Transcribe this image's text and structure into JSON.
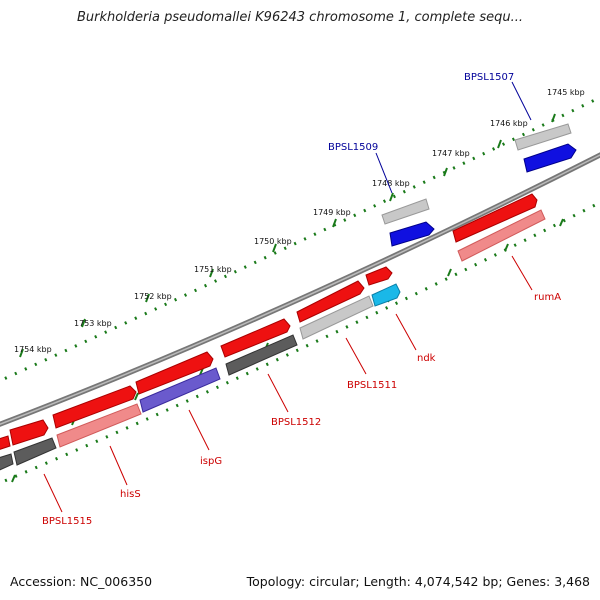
{
  "title": "Burkholderia pseudomallei K96243 chromosome 1, complete sequ...",
  "footer": {
    "accession": "Accession: NC_006350",
    "summary": "Topology: circular; Length: 4,074,542 bp; Genes: 3,468"
  },
  "colors": {
    "forward": "#ee1111",
    "forward_light": "#f08a8a",
    "gray_dark": "#5c5c5c",
    "gray_light": "#c8c8c8",
    "blue": "#1010e0",
    "purple": "#6a5acd",
    "cyan": "#1ab8e8",
    "ruler": "#1a7a1a",
    "label_red": "#cc0000",
    "label_blue": "#000099"
  },
  "kbp_labels": [
    "1745 kbp",
    "1746 kbp",
    "1747 kbp",
    "1748 kbp",
    "1749 kbp",
    "1750 kbp",
    "1751 kbp",
    "1752 kbp",
    "1753 kbp",
    "1754 kbp"
  ],
  "gene_labels": [
    "BPSL1507",
    "BPSL1509",
    "rumA",
    "ndk",
    "BPSL1511",
    "BPSL1512",
    "ispG",
    "hisS",
    "BPSL1515"
  ]
}
